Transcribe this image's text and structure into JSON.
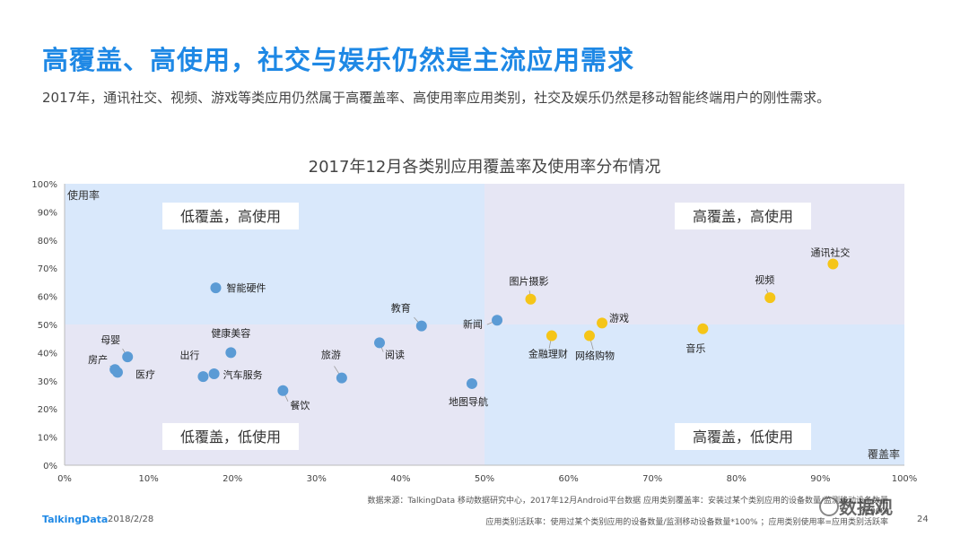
{
  "page": {
    "title": "高覆盖、高使用，社交与娱乐仍然是主流应用需求",
    "subtitle": "2017年，通讯社交、视频、游戏等类应用仍然属于高覆盖率、高使用率应用类别，社交及娱乐仍然是移动智能终端用户的刚性需求。",
    "source_line1": "数据来源：TalkingData 移动数据研究中心，2017年12月Android平台数据    应用类别覆盖率：安装过某个类别应用的设备数量/监测移动设备数量*100%",
    "source_line2": "应用类别活跃率：使用过某个类别应用的设备数量/监测移动设备数量*100%  ；应用类别使用率=应用类别活跃率",
    "brand": "TalkingData",
    "date": "2018/2/28",
    "page_number": "24",
    "watermark": "数据观"
  },
  "chart_data": {
    "type": "scatter",
    "title": "2017年12月各类别应用覆盖率及使用率分布情况",
    "xlabel": "覆盖率",
    "ylabel": "使用率",
    "xlim": [
      0,
      100
    ],
    "ylim": [
      0,
      100
    ],
    "x_ticks": [
      "0%",
      "10%",
      "20%",
      "30%",
      "40%",
      "50%",
      "60%",
      "70%",
      "80%",
      "90%",
      "100%"
    ],
    "y_ticks": [
      "0%",
      "10%",
      "20%",
      "30%",
      "40%",
      "50%",
      "60%",
      "70%",
      "80%",
      "90%",
      "100%"
    ],
    "quadrant_split": {
      "x": 50,
      "y": 50
    },
    "quadrants": {
      "top_left": "低覆盖，高使用",
      "top_right": "高覆盖，高使用",
      "bottom_left": "低覆盖，低使用",
      "bottom_right": "高覆盖，低使用"
    },
    "colors": {
      "blue_point": "#5b9bd5",
      "yellow_point": "#f5c518",
      "quad_light": "#d9e8fb",
      "quad_lavender": "#e6e6f4",
      "title_blue": "#1e88e5"
    },
    "points": [
      {
        "name": "智能硬件",
        "x": 18,
        "y": 63,
        "color": "blue"
      },
      {
        "name": "母婴",
        "x": 7.5,
        "y": 38.5,
        "color": "blue"
      },
      {
        "name": "房产",
        "x": 6,
        "y": 34,
        "color": "blue"
      },
      {
        "name": "医疗",
        "x": 6.3,
        "y": 33,
        "color": "blue"
      },
      {
        "name": "健康美容",
        "x": 19.8,
        "y": 40,
        "color": "blue"
      },
      {
        "name": "出行",
        "x": 16.5,
        "y": 31.5,
        "color": "blue"
      },
      {
        "name": "汽车服务",
        "x": 17.8,
        "y": 32.5,
        "color": "blue"
      },
      {
        "name": "餐饮",
        "x": 26,
        "y": 26.5,
        "color": "blue"
      },
      {
        "name": "旅游",
        "x": 33,
        "y": 31,
        "color": "blue"
      },
      {
        "name": "阅读",
        "x": 37.5,
        "y": 43.5,
        "color": "blue"
      },
      {
        "name": "教育",
        "x": 42.5,
        "y": 49.5,
        "color": "blue"
      },
      {
        "name": "新闻",
        "x": 51.5,
        "y": 51.5,
        "color": "blue"
      },
      {
        "name": "地图导航",
        "x": 48.5,
        "y": 29,
        "color": "blue"
      },
      {
        "name": "图片摄影",
        "x": 55.5,
        "y": 59,
        "color": "yellow"
      },
      {
        "name": "金融理财",
        "x": 58,
        "y": 46,
        "color": "yellow"
      },
      {
        "name": "网络购物",
        "x": 62.5,
        "y": 46,
        "color": "yellow"
      },
      {
        "name": "游戏",
        "x": 64,
        "y": 50.5,
        "color": "yellow"
      },
      {
        "name": "音乐",
        "x": 76,
        "y": 48.5,
        "color": "yellow"
      },
      {
        "name": "视频",
        "x": 84,
        "y": 59.5,
        "color": "yellow"
      },
      {
        "name": "通讯社交",
        "x": 91.5,
        "y": 71.5,
        "color": "yellow"
      }
    ]
  }
}
